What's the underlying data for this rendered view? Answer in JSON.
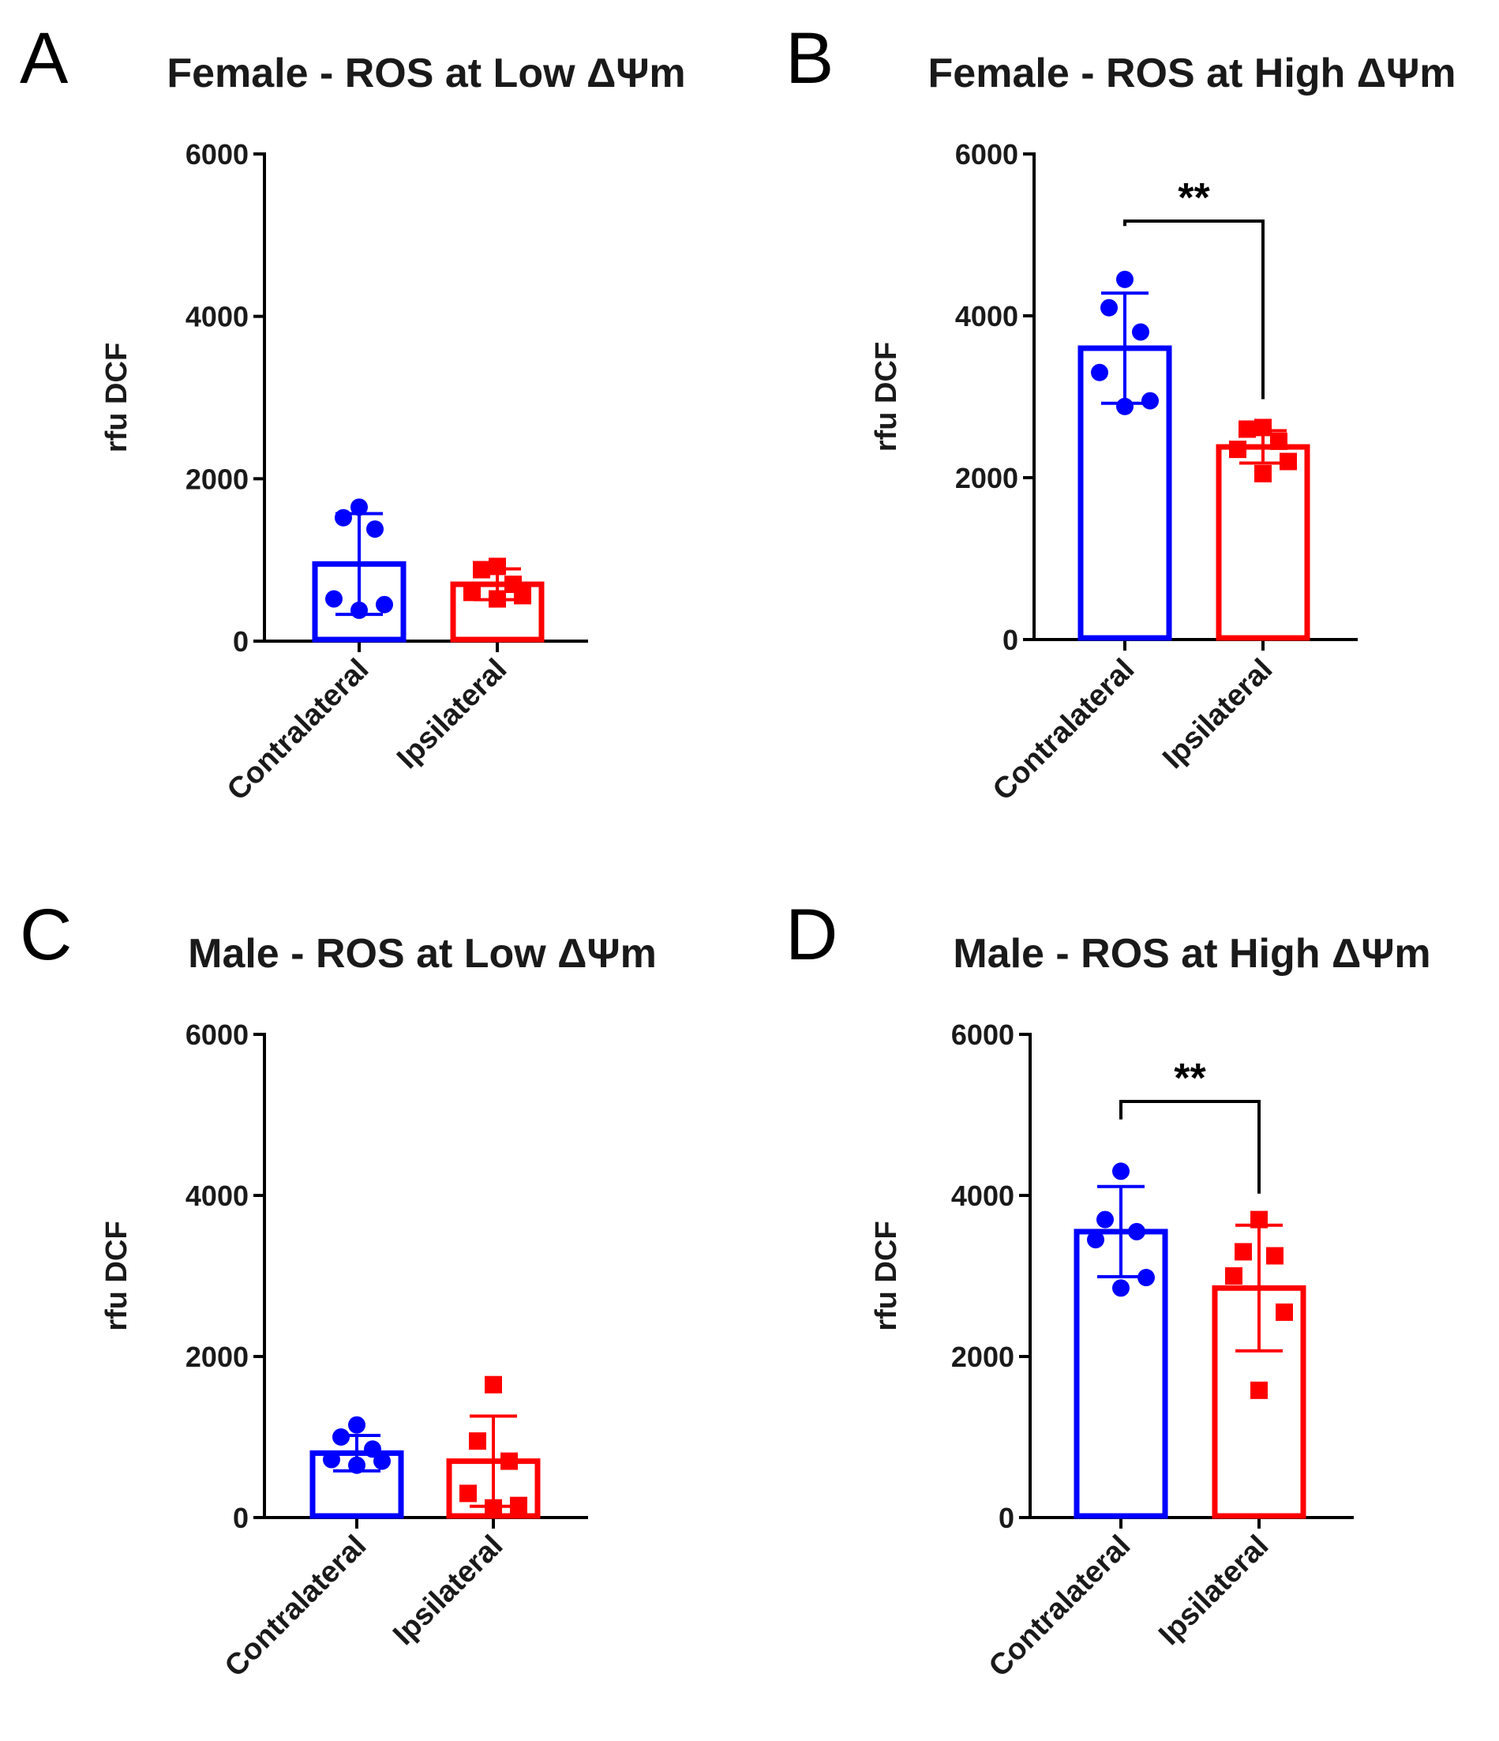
{
  "chart_data": [
    {
      "panel": "A",
      "type": "bar",
      "title": "Female - ROS at Low ΔΨm",
      "ylabel": "rfu DCF",
      "ylim": [
        0,
        6000
      ],
      "yticks": [
        "0",
        "2000",
        "4000",
        "6000"
      ],
      "categories": [
        "Contralateral",
        "Ipsilateral"
      ],
      "colors": [
        "#0000ff",
        "#ff0000"
      ],
      "markers": [
        "circle",
        "square"
      ],
      "values": [
        950,
        700
      ],
      "sd": [
        620,
        190
      ],
      "points": [
        [
          1650,
          1520,
          1380,
          520,
          450,
          380
        ],
        [
          920,
          880,
          700,
          600,
          560,
          520
        ]
      ],
      "significance": null
    },
    {
      "panel": "B",
      "type": "bar",
      "title": "Female - ROS at High ΔΨm",
      "ylabel": "rfu DCF",
      "ylim": [
        0,
        6000
      ],
      "yticks": [
        "0",
        "2000",
        "4000",
        "6000"
      ],
      "categories": [
        "Contralateral",
        "Ipsilateral"
      ],
      "colors": [
        "#0000ff",
        "#ff0000"
      ],
      "markers": [
        "circle",
        "square"
      ],
      "values": [
        3600,
        2380
      ],
      "sd": [
        680,
        200
      ],
      "points": [
        [
          4450,
          4100,
          3800,
          3300,
          2950,
          2880
        ],
        [
          2620,
          2600,
          2450,
          2350,
          2200,
          2050
        ]
      ],
      "significance": "**"
    },
    {
      "panel": "C",
      "type": "bar",
      "title": "Male - ROS at Low ΔΨm",
      "ylabel": "rfu DCF",
      "ylim": [
        0,
        6000
      ],
      "yticks": [
        "0",
        "2000",
        "4000",
        "6000"
      ],
      "categories": [
        "Contralateral",
        "Ipsilateral"
      ],
      "colors": [
        "#0000ff",
        "#ff0000"
      ],
      "markers": [
        "circle",
        "square"
      ],
      "values": [
        800,
        700
      ],
      "sd": [
        220,
        560
      ],
      "points": [
        [
          1150,
          1000,
          850,
          720,
          700,
          650
        ],
        [
          1650,
          950,
          700,
          300,
          150,
          120
        ]
      ],
      "significance": null
    },
    {
      "panel": "D",
      "type": "bar",
      "title": "Male - ROS at High ΔΨm",
      "ylabel": "rfu DCF",
      "ylim": [
        0,
        6000
      ],
      "yticks": [
        "0",
        "2000",
        "4000",
        "6000"
      ],
      "categories": [
        "Contralateral",
        "Ipsilateral"
      ],
      "colors": [
        "#0000ff",
        "#ff0000"
      ],
      "markers": [
        "circle",
        "square"
      ],
      "values": [
        3550,
        2850
      ],
      "sd": [
        560,
        780
      ],
      "points": [
        [
          4300,
          3700,
          3550,
          3450,
          2980,
          2850
        ],
        [
          3700,
          3300,
          3250,
          3000,
          2550,
          1580
        ]
      ],
      "significance": "**"
    }
  ]
}
